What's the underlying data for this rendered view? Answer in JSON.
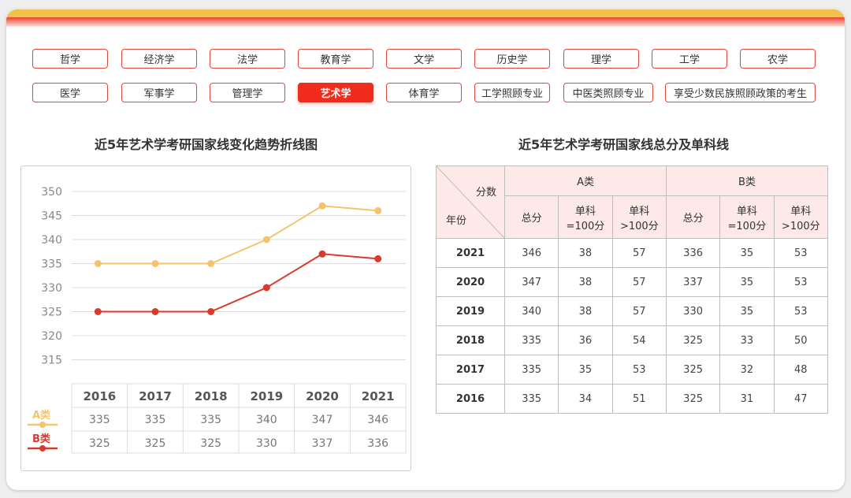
{
  "categories_row1": [
    "哲学",
    "经济学",
    "法学",
    "教育学",
    "文学",
    "历史学",
    "理学",
    "工学",
    "农学"
  ],
  "categories_row2": [
    "医学",
    "军事学",
    "管理学",
    "艺术学",
    "体育学",
    "工学照顾专业",
    "中医类照顾专业",
    "享受少数民族照顾政策的考生"
  ],
  "active_category": "艺术学",
  "chart_title": "近5年艺术学考研国家线变化趋势折线图",
  "table_title": "近5年艺术学考研国家线总分及单科线",
  "colors": {
    "a_series": "#f5c36b",
    "b_series": "#d83a2e",
    "active": "#f22c1c",
    "accent_border": "#e0483a"
  },
  "chart_data": {
    "type": "line",
    "categories": [
      "2016",
      "2017",
      "2018",
      "2019",
      "2020",
      "2021"
    ],
    "series": [
      {
        "name": "A类",
        "values": [
          335,
          335,
          335,
          340,
          347,
          346
        ]
      },
      {
        "name": "B类",
        "values": [
          325,
          325,
          325,
          330,
          337,
          336
        ]
      }
    ],
    "y_ticks": [
      350,
      345,
      340,
      335,
      330,
      325,
      320,
      315
    ],
    "ylim": [
      310,
      350
    ]
  },
  "table": {
    "header_score": "分数",
    "header_year": "年份",
    "group_a": "A类",
    "group_b": "B类",
    "col_total": "总分",
    "col_single_eq_1": "单科",
    "col_single_eq_2": "=100分",
    "col_single_gt_1": "单科",
    "col_single_gt_2": ">100分",
    "rows": [
      {
        "year": "2021",
        "a_total": "346",
        "a_eq": "38",
        "a_gt": "57",
        "b_total": "336",
        "b_eq": "35",
        "b_gt": "53"
      },
      {
        "year": "2020",
        "a_total": "347",
        "a_eq": "38",
        "a_gt": "57",
        "b_total": "337",
        "b_eq": "35",
        "b_gt": "53"
      },
      {
        "year": "2019",
        "a_total": "340",
        "a_eq": "38",
        "a_gt": "57",
        "b_total": "330",
        "b_eq": "35",
        "b_gt": "53"
      },
      {
        "year": "2018",
        "a_total": "335",
        "a_eq": "36",
        "a_gt": "54",
        "b_total": "325",
        "b_eq": "33",
        "b_gt": "50"
      },
      {
        "year": "2017",
        "a_total": "335",
        "a_eq": "35",
        "a_gt": "53",
        "b_total": "325",
        "b_eq": "32",
        "b_gt": "48"
      },
      {
        "year": "2016",
        "a_total": "335",
        "a_eq": "34",
        "a_gt": "51",
        "b_total": "325",
        "b_eq": "31",
        "b_gt": "47"
      }
    ]
  }
}
